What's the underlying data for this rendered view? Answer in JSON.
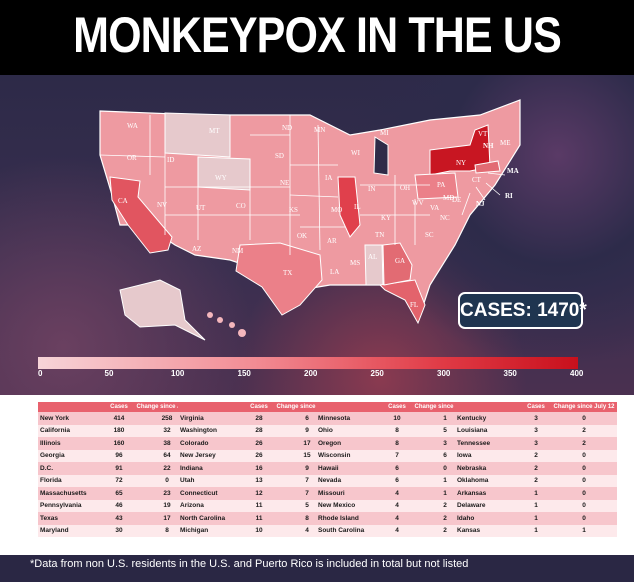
{
  "title": "MONKEYPOX IN THE US",
  "cases_label": "CASES: 1470*",
  "scale_labels": [
    "0",
    "50",
    "100",
    "150",
    "200",
    "250",
    "300",
    "350",
    "400"
  ],
  "state_labels": [
    "WA",
    "OR",
    "CA",
    "NV",
    "ID",
    "MT",
    "WY",
    "UT",
    "AZ",
    "CO",
    "NM",
    "ND",
    "SD",
    "NE",
    "KS",
    "OK",
    "TX",
    "MN",
    "IA",
    "MO",
    "AR",
    "LA",
    "WI",
    "IL",
    "MI",
    "IN",
    "OH",
    "KY",
    "TN",
    "MS",
    "AL",
    "GA",
    "FL",
    "SC",
    "NC",
    "VA",
    "WV",
    "PA",
    "NY",
    "VT",
    "NH",
    "ME",
    "MD",
    "DE",
    "NJ",
    "CT",
    "RI",
    "MA"
  ],
  "tables": {
    "header": [
      "",
      "Cases",
      "Change since July 12"
    ],
    "t1": [
      [
        "New York",
        "414",
        "258"
      ],
      [
        "California",
        "180",
        "32"
      ],
      [
        "Illinois",
        "160",
        "38"
      ],
      [
        "Georgia",
        "96",
        "64"
      ],
      [
        "D.C.",
        "91",
        "22"
      ],
      [
        "Florida",
        "72",
        "0"
      ],
      [
        "Massachusetts",
        "65",
        "23"
      ],
      [
        "Pennsylvania",
        "46",
        "19"
      ],
      [
        "Texas",
        "43",
        "17"
      ],
      [
        "Maryland",
        "30",
        "8"
      ]
    ],
    "t2": [
      [
        "Virginia",
        "28",
        "6"
      ],
      [
        "Washington",
        "28",
        "9"
      ],
      [
        "Colorado",
        "26",
        "17"
      ],
      [
        "New Jersey",
        "26",
        "15"
      ],
      [
        "Indiana",
        "16",
        "9"
      ],
      [
        "Utah",
        "13",
        "7"
      ],
      [
        "Connecticut",
        "12",
        "7"
      ],
      [
        "Arizona",
        "11",
        "5"
      ],
      [
        "North Carolina",
        "11",
        "8"
      ],
      [
        "Michigan",
        "10",
        "4"
      ]
    ],
    "t3": [
      [
        "Minnesota",
        "10",
        "1"
      ],
      [
        "Ohio",
        "8",
        "5"
      ],
      [
        "Oregon",
        "8",
        "3"
      ],
      [
        "Wisconsin",
        "7",
        "6"
      ],
      [
        "Hawaii",
        "6",
        "0"
      ],
      [
        "Nevada",
        "6",
        "1"
      ],
      [
        "Missouri",
        "4",
        "1"
      ],
      [
        "New Mexico",
        "4",
        "2"
      ],
      [
        "Rhode Island",
        "4",
        "2"
      ],
      [
        "South Carolina",
        "4",
        "2"
      ]
    ],
    "t4": [
      [
        "Kentucky",
        "3",
        "0"
      ],
      [
        "Louisiana",
        "3",
        "2"
      ],
      [
        "Tennessee",
        "3",
        "2"
      ],
      [
        "Iowa",
        "2",
        "0"
      ],
      [
        "Nebraska",
        "2",
        "0"
      ],
      [
        "Oklahoma",
        "2",
        "0"
      ],
      [
        "Arkansas",
        "1",
        "0"
      ],
      [
        "Delaware",
        "1",
        "0"
      ],
      [
        "Idaho",
        "1",
        "0"
      ],
      [
        "Kansas",
        "1",
        "1"
      ]
    ]
  },
  "footnote": "*Data from non U.S. residents in the U.S. and Puerto Rico is included in total but not listed",
  "colors": {
    "low": "#f4b6bc",
    "mid": "#ec8891",
    "high": "#e0474f",
    "ny": "#c81622",
    "nodata": "#e6c9cc"
  }
}
